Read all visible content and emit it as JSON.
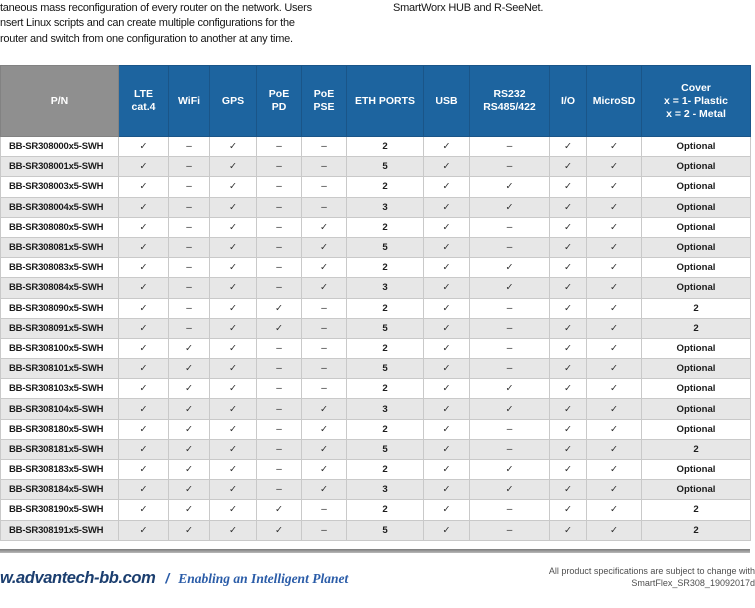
{
  "intro": {
    "left_lines": [
      "taneous mass reconfiguration of every router on the network. Users",
      "nsert Linux scripts and can create multiple configurations for the",
      "router and switch from one configuration to another at any time."
    ],
    "right": "SmartWorx HUB and R-SeeNet."
  },
  "colors": {
    "header_blue": "#1d649f",
    "header_gray": "#8f8f8f",
    "row_alt_gray": "#e7e7e7",
    "cell_border": "#c9c9c9",
    "footer_navy": "#1b3e6f",
    "footer_blue": "#2a5ca8"
  },
  "glyphs": {
    "check": "✓",
    "dash": "–"
  },
  "table": {
    "columns": [
      {
        "key": "pn",
        "lines": [
          "P/N"
        ]
      },
      {
        "key": "lte",
        "lines": [
          "LTE",
          "cat.4"
        ]
      },
      {
        "key": "wifi",
        "lines": [
          "WiFi"
        ]
      },
      {
        "key": "gps",
        "lines": [
          "GPS"
        ]
      },
      {
        "key": "poe-pd",
        "lines": [
          "PoE",
          "PD"
        ]
      },
      {
        "key": "poe-pse",
        "lines": [
          "PoE",
          "PSE"
        ]
      },
      {
        "key": "eth-ports",
        "lines": [
          "ETH PORTS"
        ]
      },
      {
        "key": "usb",
        "lines": [
          "USB"
        ]
      },
      {
        "key": "rs232",
        "lines": [
          "RS232",
          "RS485/422"
        ]
      },
      {
        "key": "io",
        "lines": [
          "I/O"
        ]
      },
      {
        "key": "microsd",
        "lines": [
          "MicroSD"
        ]
      },
      {
        "key": "cover",
        "lines": [
          "Cover",
          "x = 1- Plastic",
          "x = 2 - Metal"
        ]
      }
    ],
    "rows": [
      {
        "pn": "BB-SR308000x5-SWH",
        "values": [
          "✓",
          "–",
          "✓",
          "–",
          "–",
          "2",
          "✓",
          "–",
          "✓",
          "✓",
          "Optional"
        ]
      },
      {
        "pn": "BB-SR308001x5-SWH",
        "values": [
          "✓",
          "–",
          "✓",
          "–",
          "–",
          "5",
          "✓",
          "–",
          "✓",
          "✓",
          "Optional"
        ]
      },
      {
        "pn": "BB-SR308003x5-SWH",
        "values": [
          "✓",
          "–",
          "✓",
          "–",
          "–",
          "2",
          "✓",
          "✓",
          "✓",
          "✓",
          "Optional"
        ]
      },
      {
        "pn": "BB-SR308004x5-SWH",
        "values": [
          "✓",
          "–",
          "✓",
          "–",
          "–",
          "3",
          "✓",
          "✓",
          "✓",
          "✓",
          "Optional"
        ]
      },
      {
        "pn": "BB-SR308080x5-SWH",
        "values": [
          "✓",
          "–",
          "✓",
          "–",
          "✓",
          "2",
          "✓",
          "–",
          "✓",
          "✓",
          "Optional"
        ]
      },
      {
        "pn": "BB-SR308081x5-SWH",
        "values": [
          "✓",
          "–",
          "✓",
          "–",
          "✓",
          "5",
          "✓",
          "–",
          "✓",
          "✓",
          "Optional"
        ]
      },
      {
        "pn": "BB-SR308083x5-SWH",
        "values": [
          "✓",
          "–",
          "✓",
          "–",
          "✓",
          "2",
          "✓",
          "✓",
          "✓",
          "✓",
          "Optional"
        ]
      },
      {
        "pn": "BB-SR308084x5-SWH",
        "values": [
          "✓",
          "–",
          "✓",
          "–",
          "✓",
          "3",
          "✓",
          "✓",
          "✓",
          "✓",
          "Optional"
        ]
      },
      {
        "pn": "BB-SR308090x5-SWH",
        "values": [
          "✓",
          "–",
          "✓",
          "✓",
          "–",
          "2",
          "✓",
          "–",
          "✓",
          "✓",
          "2"
        ]
      },
      {
        "pn": "BB-SR308091x5-SWH",
        "values": [
          "✓",
          "–",
          "✓",
          "✓",
          "–",
          "5",
          "✓",
          "–",
          "✓",
          "✓",
          "2"
        ]
      },
      {
        "pn": "BB-SR308100x5-SWH",
        "values": [
          "✓",
          "✓",
          "✓",
          "–",
          "–",
          "2",
          "✓",
          "–",
          "✓",
          "✓",
          "Optional"
        ]
      },
      {
        "pn": "BB-SR308101x5-SWH",
        "values": [
          "✓",
          "✓",
          "✓",
          "–",
          "–",
          "5",
          "✓",
          "–",
          "✓",
          "✓",
          "Optional"
        ]
      },
      {
        "pn": "BB-SR308103x5-SWH",
        "values": [
          "✓",
          "✓",
          "✓",
          "–",
          "–",
          "2",
          "✓",
          "✓",
          "✓",
          "✓",
          "Optional"
        ]
      },
      {
        "pn": "BB-SR308104x5-SWH",
        "values": [
          "✓",
          "✓",
          "✓",
          "–",
          "✓",
          "3",
          "✓",
          "✓",
          "✓",
          "✓",
          "Optional"
        ]
      },
      {
        "pn": "BB-SR308180x5-SWH",
        "values": [
          "✓",
          "✓",
          "✓",
          "–",
          "✓",
          "2",
          "✓",
          "–",
          "✓",
          "✓",
          "Optional"
        ]
      },
      {
        "pn": "BB-SR308181x5-SWH",
        "values": [
          "✓",
          "✓",
          "✓",
          "–",
          "✓",
          "5",
          "✓",
          "–",
          "✓",
          "✓",
          "2"
        ]
      },
      {
        "pn": "BB-SR308183x5-SWH",
        "values": [
          "✓",
          "✓",
          "✓",
          "–",
          "✓",
          "2",
          "✓",
          "✓",
          "✓",
          "✓",
          "Optional"
        ]
      },
      {
        "pn": "BB-SR308184x5-SWH",
        "values": [
          "✓",
          "✓",
          "✓",
          "–",
          "✓",
          "3",
          "✓",
          "✓",
          "✓",
          "✓",
          "Optional"
        ]
      },
      {
        "pn": "BB-SR308190x5-SWH",
        "values": [
          "✓",
          "✓",
          "✓",
          "✓",
          "–",
          "2",
          "✓",
          "–",
          "✓",
          "✓",
          "2"
        ]
      },
      {
        "pn": "BB-SR308191x5-SWH",
        "values": [
          "✓",
          "✓",
          "✓",
          "✓",
          "–",
          "5",
          "✓",
          "–",
          "✓",
          "✓",
          "2"
        ]
      }
    ]
  },
  "footer": {
    "site": "w.advantech-bb.com",
    "slash": "/",
    "tagline": "Enabling an Intelligent Planet",
    "note_line1": "All product specifications are subject to change with",
    "note_line2": "SmartFlex_SR308_19092017d"
  }
}
